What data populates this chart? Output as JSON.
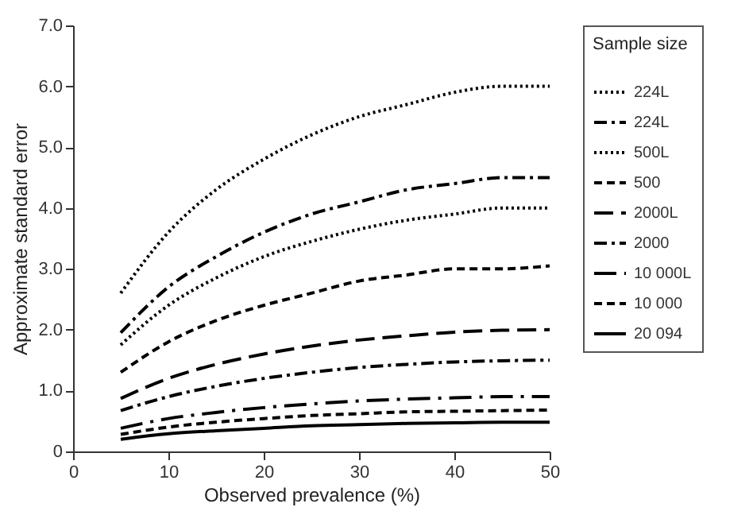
{
  "chart_data": {
    "type": "line",
    "xlabel": "Observed prevalence (%)",
    "ylabel": "Approximate standard error",
    "legend_title": "Sample size",
    "legend": "right",
    "x": [
      5,
      10,
      15,
      20,
      25,
      30,
      35,
      40,
      45,
      50
    ],
    "xlim": [
      0,
      50
    ],
    "xticks": [
      0,
      10,
      20,
      30,
      40,
      50
    ],
    "ylim": [
      0,
      7
    ],
    "yticks": [
      {
        "value": 0,
        "label": "0"
      },
      {
        "value": 1,
        "label": "1.0"
      },
      {
        "value": 2,
        "label": "2.0"
      },
      {
        "value": 3,
        "label": "3.0"
      },
      {
        "value": 4,
        "label": "4.0"
      },
      {
        "value": 5,
        "label": "5.0"
      },
      {
        "value": 6,
        "label": "6.0"
      },
      {
        "value": 7,
        "label": "7.0"
      }
    ],
    "grid": false,
    "series": [
      {
        "name": "224L",
        "color": "#000000",
        "line_style": "dotted",
        "values": [
          2.6,
          3.6,
          4.3,
          4.8,
          5.2,
          5.5,
          5.7,
          5.9,
          6.0,
          6.0
        ]
      },
      {
        "name": "224L",
        "color": "#000000",
        "line_style": "dashdot",
        "values": [
          1.95,
          2.7,
          3.2,
          3.6,
          3.9,
          4.1,
          4.3,
          4.4,
          4.5,
          4.5
        ]
      },
      {
        "name": "500L",
        "color": "#000000",
        "line_style": "dotted",
        "values": [
          1.75,
          2.4,
          2.85,
          3.2,
          3.45,
          3.65,
          3.8,
          3.9,
          4.0,
          4.0
        ]
      },
      {
        "name": "500",
        "color": "#000000",
        "line_style": "dashed",
        "values": [
          1.3,
          1.8,
          2.15,
          2.4,
          2.6,
          2.8,
          2.9,
          3.0,
          3.0,
          3.05
        ]
      },
      {
        "name": "2000L",
        "color": "#000000",
        "line_style": "longdash",
        "values": [
          0.87,
          1.2,
          1.43,
          1.6,
          1.73,
          1.83,
          1.9,
          1.96,
          1.99,
          2.0
        ]
      },
      {
        "name": "2000",
        "color": "#000000",
        "line_style": "dashdot",
        "values": [
          0.67,
          0.9,
          1.07,
          1.2,
          1.3,
          1.38,
          1.43,
          1.47,
          1.49,
          1.5
        ]
      },
      {
        "name": "10 000L",
        "color": "#000000",
        "line_style": "longdashdot",
        "values": [
          0.38,
          0.54,
          0.64,
          0.72,
          0.78,
          0.83,
          0.86,
          0.88,
          0.9,
          0.9
        ]
      },
      {
        "name": "10 000",
        "color": "#000000",
        "line_style": "dashed",
        "values": [
          0.28,
          0.4,
          0.48,
          0.54,
          0.59,
          0.62,
          0.65,
          0.66,
          0.67,
          0.68
        ]
      },
      {
        "name": "20 094",
        "color": "#000000",
        "line_style": "solid",
        "values": [
          0.2,
          0.29,
          0.34,
          0.38,
          0.42,
          0.44,
          0.46,
          0.47,
          0.48,
          0.48
        ]
      }
    ]
  }
}
